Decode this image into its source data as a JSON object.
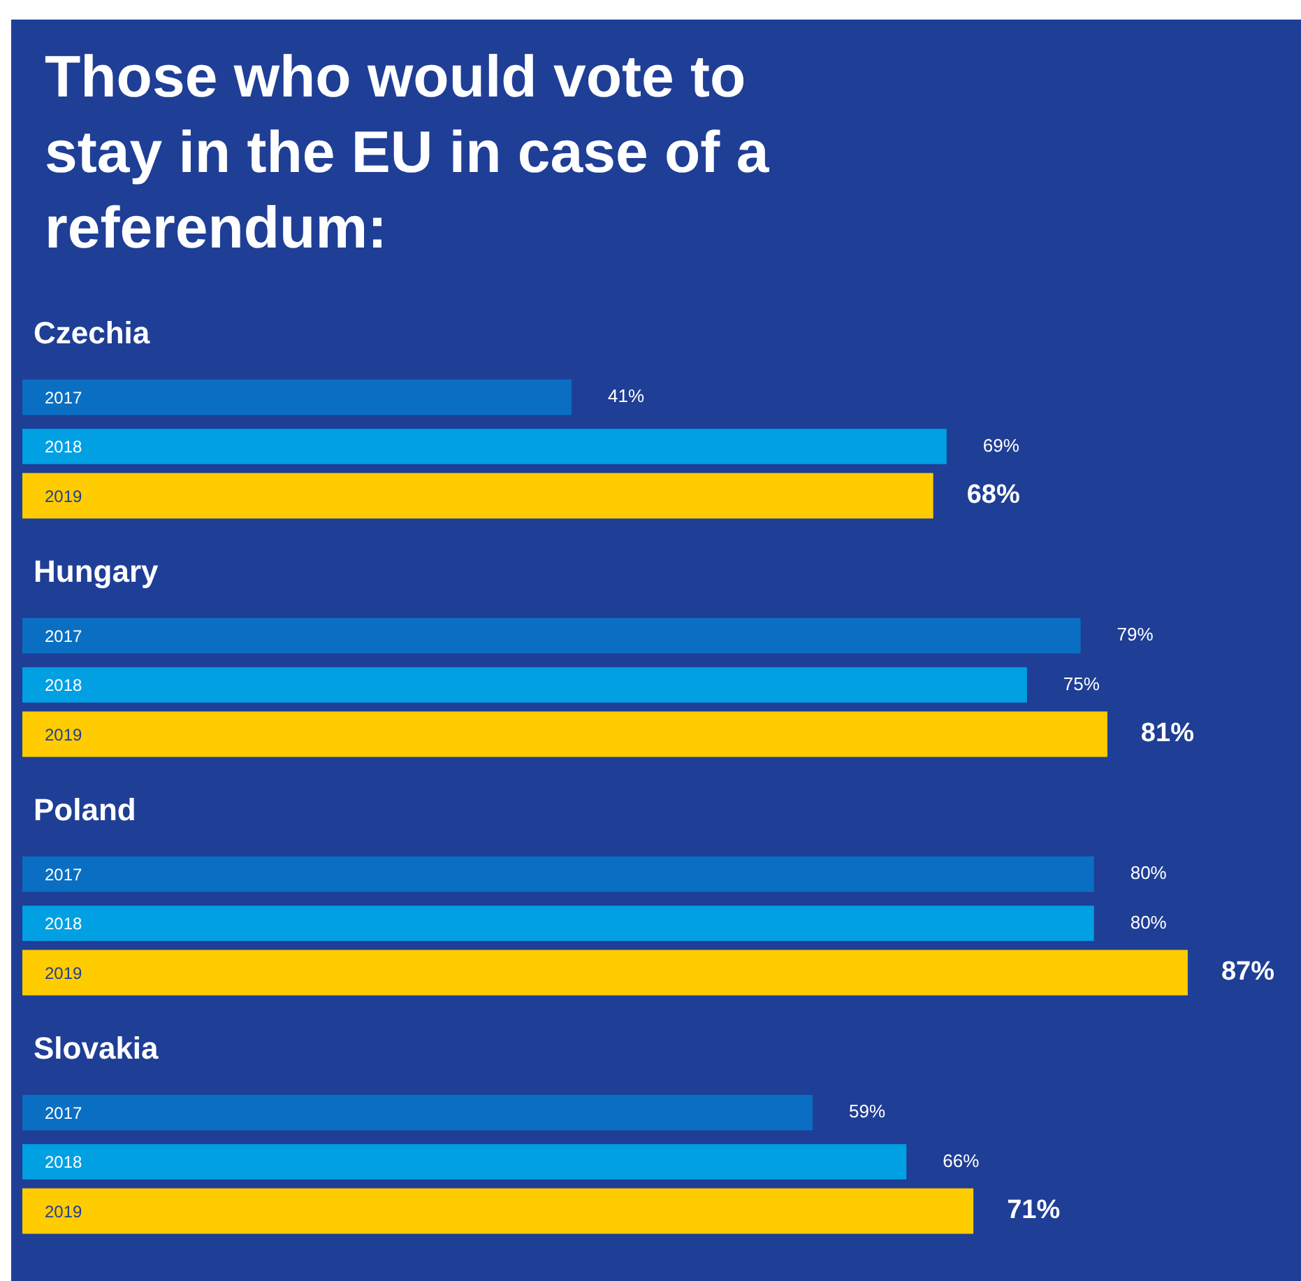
{
  "chart_data": {
    "type": "bar",
    "orientation": "horizontal",
    "title": "Those who would vote to stay in the EU in case of a referendum:",
    "categories": [
      "Czechia",
      "Hungary",
      "Poland",
      "Slovakia"
    ],
    "series": [
      {
        "name": "2017",
        "color": "#0a6fc2",
        "values": [
          41,
          79,
          80,
          59
        ],
        "value_labels": [
          "41%",
          "79%",
          "80%",
          "59%"
        ]
      },
      {
        "name": "2018",
        "color": "#00a0e3",
        "values": [
          69,
          75,
          80,
          66
        ],
        "value_labels": [
          "69%",
          "75%",
          "80%",
          "66%"
        ]
      },
      {
        "name": "2019",
        "color": "#ffcc00",
        "values": [
          68,
          81,
          87,
          71
        ],
        "value_labels": [
          "68%",
          "81%",
          "87%",
          "71%"
        ]
      }
    ],
    "legend": false,
    "tick_labels": "y"
  }
}
